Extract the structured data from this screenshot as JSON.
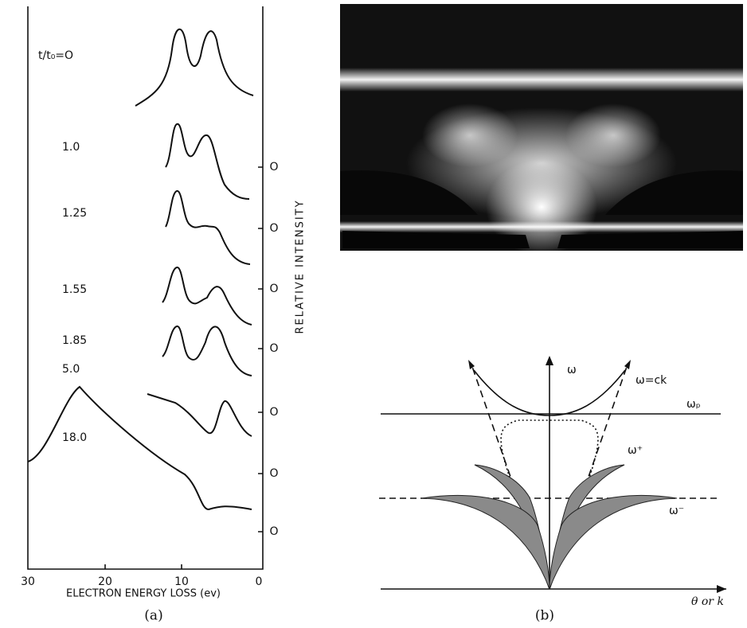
{
  "panel_a": {
    "x_axis_title": "ELECTRON ENERGY LOSS (ev)",
    "x_ticks": [
      "30",
      "20",
      "10",
      "0"
    ],
    "y_axis_title": "RELATIVE INTENSITY",
    "zero_labels": [
      "O",
      "O",
      "O",
      "O",
      "O",
      "O",
      "O"
    ],
    "curve_labels": [
      "t/t₀=O",
      "1.0",
      "1.25",
      "1.55",
      "1.85",
      "5.0",
      "18.0"
    ],
    "caption": "(a)"
  },
  "panel_b": {
    "omega": "ω",
    "light_line": "ω=ck",
    "omega_p": "ωₚ",
    "omega_plus": "ω⁺",
    "omega_minus": "ω⁻",
    "x_axis": "θ or k",
    "caption": "(b)"
  }
}
